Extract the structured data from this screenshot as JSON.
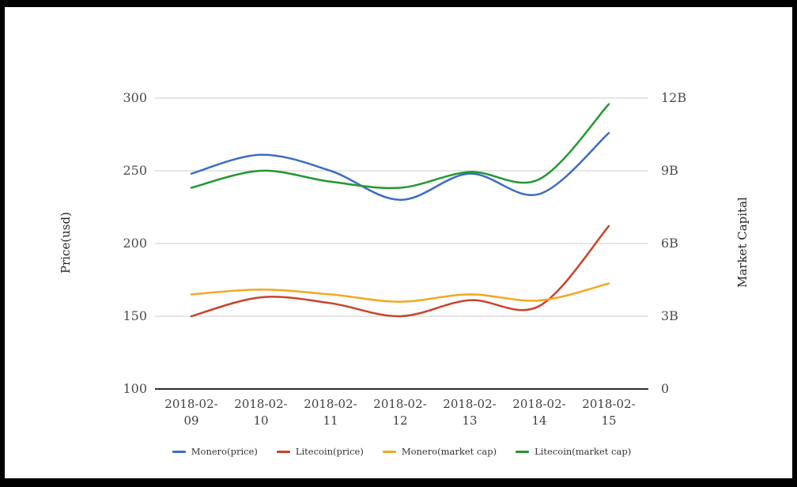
{
  "window": {
    "background": "#ffffff",
    "border_color": "#000000"
  },
  "chart_data": {
    "type": "line",
    "title": "",
    "categories": [
      "2018-02-09",
      "2018-02-10",
      "2018-02-11",
      "2018-02-12",
      "2018-02-13",
      "2018-02-14",
      "2018-02-15"
    ],
    "left_axis": {
      "label": "Price(usd)",
      "ticks": [
        300,
        250,
        200,
        150,
        100
      ],
      "range": [
        100,
        300
      ]
    },
    "right_axis": {
      "label": "Market Capital",
      "tick_labels": [
        "12B",
        "9B",
        "6B",
        "3B",
        "0"
      ],
      "range_billions": [
        0,
        12
      ]
    },
    "grid": true,
    "legend_position": "bottom",
    "series": [
      {
        "name": "Monero(price)",
        "axis": "left",
        "color": "#3d6cc4",
        "values": [
          248,
          261,
          250,
          230,
          248,
          234,
          276
        ]
      },
      {
        "name": "Litecoin(price)",
        "axis": "left",
        "color": "#cb4228",
        "values": [
          150,
          163,
          159,
          150,
          161,
          157,
          212
        ]
      },
      {
        "name": "Monero(market cap)",
        "axis": "right",
        "color": "#f5a623",
        "values_billions": [
          3.9,
          4.1,
          3.9,
          3.6,
          3.9,
          3.65,
          4.35
        ]
      },
      {
        "name": "Litecoin(market cap)",
        "axis": "right",
        "color": "#239730",
        "values_billions": [
          8.3,
          9.0,
          8.55,
          8.3,
          8.95,
          8.65,
          11.75
        ]
      }
    ],
    "styles": {
      "grid_color": "#cccccc",
      "axis_line_color": "#2d2d2d",
      "tick_text_color": "#4b4b4b",
      "axis_title_color": "#262626",
      "legend_text_color": "#333333"
    }
  }
}
